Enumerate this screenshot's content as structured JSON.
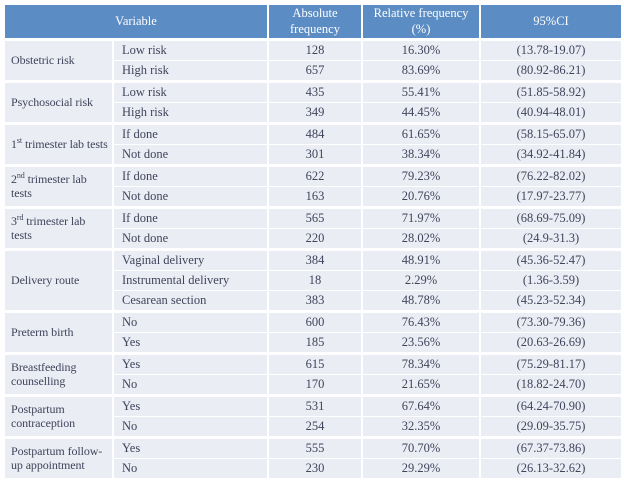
{
  "colors": {
    "header_bg": "#5b8cc4",
    "header_text": "#ffffff",
    "row_bg": "#ebedf5",
    "grid": "#ffffff",
    "text": "#40445a"
  },
  "table": {
    "headers": [
      "Variable",
      "Absolute frequency",
      "Relative frequency (%)",
      "95%CI"
    ],
    "groups": [
      {
        "variable": {
          "base": "Obstetric risk",
          "sup": "",
          "after": ""
        },
        "rows": [
          {
            "category": "Low risk",
            "absolute": "128",
            "relative": "16.30%",
            "ci": "(13.78-19.07)"
          },
          {
            "category": "High risk",
            "absolute": "657",
            "relative": "83.69%",
            "ci": "(80.92-86.21)"
          }
        ]
      },
      {
        "variable": {
          "base": "Psychosocial risk",
          "sup": "",
          "after": ""
        },
        "rows": [
          {
            "category": "Low risk",
            "absolute": "435",
            "relative": "55.41%",
            "ci": "(51.85-58.92)"
          },
          {
            "category": "High risk",
            "absolute": "349",
            "relative": "44.45%",
            "ci": "(40.94-48.01)"
          }
        ]
      },
      {
        "variable": {
          "base": "1",
          "sup": "st",
          "after": " trimester lab tests"
        },
        "rows": [
          {
            "category": "If done",
            "absolute": "484",
            "relative": "61.65%",
            "ci": "(58.15-65.07)"
          },
          {
            "category": "Not done",
            "absolute": "301",
            "relative": "38.34%",
            "ci": "(34.92-41.84)"
          }
        ]
      },
      {
        "variable": {
          "base": "2",
          "sup": "nd",
          "after": " trimester lab tests"
        },
        "rows": [
          {
            "category": "If done",
            "absolute": "622",
            "relative": "79.23%",
            "ci": "(76.22-82.02)"
          },
          {
            "category": "Not done",
            "absolute": "163",
            "relative": "20.76%",
            "ci": "(17.97-23.77)"
          }
        ]
      },
      {
        "variable": {
          "base": "3",
          "sup": "rd",
          "after": " trimester lab tests"
        },
        "rows": [
          {
            "category": "If done",
            "absolute": "565",
            "relative": "71.97%",
            "ci": "(68.69-75.09)"
          },
          {
            "category": "Not done",
            "absolute": "220",
            "relative": "28.02%",
            "ci": "(24.9-31.3)"
          }
        ]
      },
      {
        "variable": {
          "base": "Delivery route",
          "sup": "",
          "after": ""
        },
        "rows": [
          {
            "category": "Vaginal delivery",
            "absolute": "384",
            "relative": "48.91%",
            "ci": "(45.36-52.47)"
          },
          {
            "category": "Instrumental delivery",
            "absolute": "18",
            "relative": "2.29%",
            "ci": "(1.36-3.59)"
          },
          {
            "category": "Cesarean section",
            "absolute": "383",
            "relative": "48.78%",
            "ci": "(45.23-52.34)"
          }
        ]
      },
      {
        "variable": {
          "base": "Preterm birth",
          "sup": "",
          "after": ""
        },
        "rows": [
          {
            "category": "No",
            "absolute": "600",
            "relative": "76.43%",
            "ci": "(73.30-79.36)"
          },
          {
            "category": "Yes",
            "absolute": "185",
            "relative": "23.56%",
            "ci": "(20.63-26.69)"
          }
        ]
      },
      {
        "variable": {
          "base": "Breastfeeding counselling",
          "sup": "",
          "after": ""
        },
        "rows": [
          {
            "category": "Yes",
            "absolute": "615",
            "relative": "78.34%",
            "ci": "(75.29-81.17)"
          },
          {
            "category": "No",
            "absolute": "170",
            "relative": "21.65%",
            "ci": "(18.82-24.70)"
          }
        ]
      },
      {
        "variable": {
          "base": "Postpartum contraception",
          "sup": "",
          "after": ""
        },
        "rows": [
          {
            "category": "Yes",
            "absolute": "531",
            "relative": "67.64%",
            "ci": "(64.24-70.90)"
          },
          {
            "category": "No",
            "absolute": "254",
            "relative": "32.35%",
            "ci": "(29.09-35.75)"
          }
        ]
      },
      {
        "variable": {
          "base": "Postpartum follow-up appointment",
          "sup": "",
          "after": ""
        },
        "rows": [
          {
            "category": "Yes",
            "absolute": "555",
            "relative": "70.70%",
            "ci": "(67.37-73.86)"
          },
          {
            "category": "No",
            "absolute": "230",
            "relative": "29.29%",
            "ci": "(26.13-32.62)"
          }
        ]
      }
    ]
  }
}
